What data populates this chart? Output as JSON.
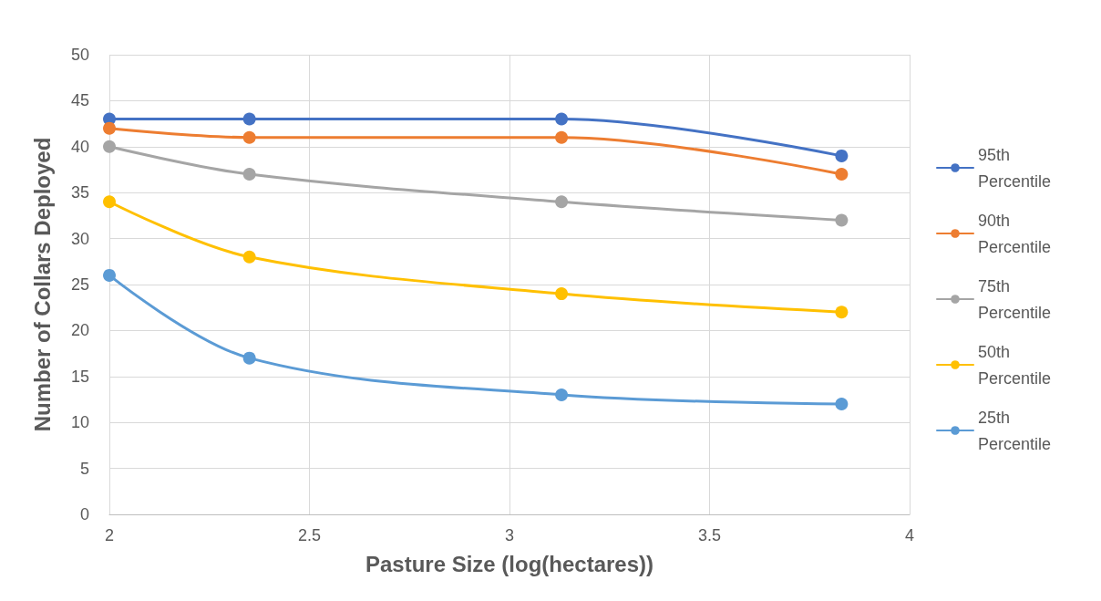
{
  "chart_data": {
    "type": "line",
    "xlabel": "Pasture Size (log(hectares))",
    "ylabel": "Number of Collars Deployed",
    "x": [
      2,
      2.35,
      3.13,
      3.83
    ],
    "series": [
      {
        "name": "95th Percentile",
        "color": "#4472c4",
        "values": [
          43,
          43,
          43,
          39
        ]
      },
      {
        "name": "90th Percentile",
        "color": "#ed7d31",
        "values": [
          42,
          41,
          41,
          37
        ]
      },
      {
        "name": "75th Percentile",
        "color": "#a5a5a5",
        "values": [
          40,
          37,
          34,
          32
        ]
      },
      {
        "name": "50th Percentile",
        "color": "#ffc000",
        "values": [
          34,
          28,
          24,
          22
        ]
      },
      {
        "name": "25th Percentile",
        "color": "#5b9bd5",
        "values": [
          26,
          17,
          13,
          12
        ]
      }
    ],
    "xlim": [
      2,
      4
    ],
    "xticks": [
      2,
      2.5,
      3,
      3.5,
      4
    ],
    "ylim": [
      0,
      50
    ],
    "yticks": [
      0,
      5,
      10,
      15,
      20,
      25,
      30,
      35,
      40,
      45,
      50
    ],
    "grid": true,
    "legend": "right",
    "marker": "circle",
    "line_style": "solid"
  }
}
